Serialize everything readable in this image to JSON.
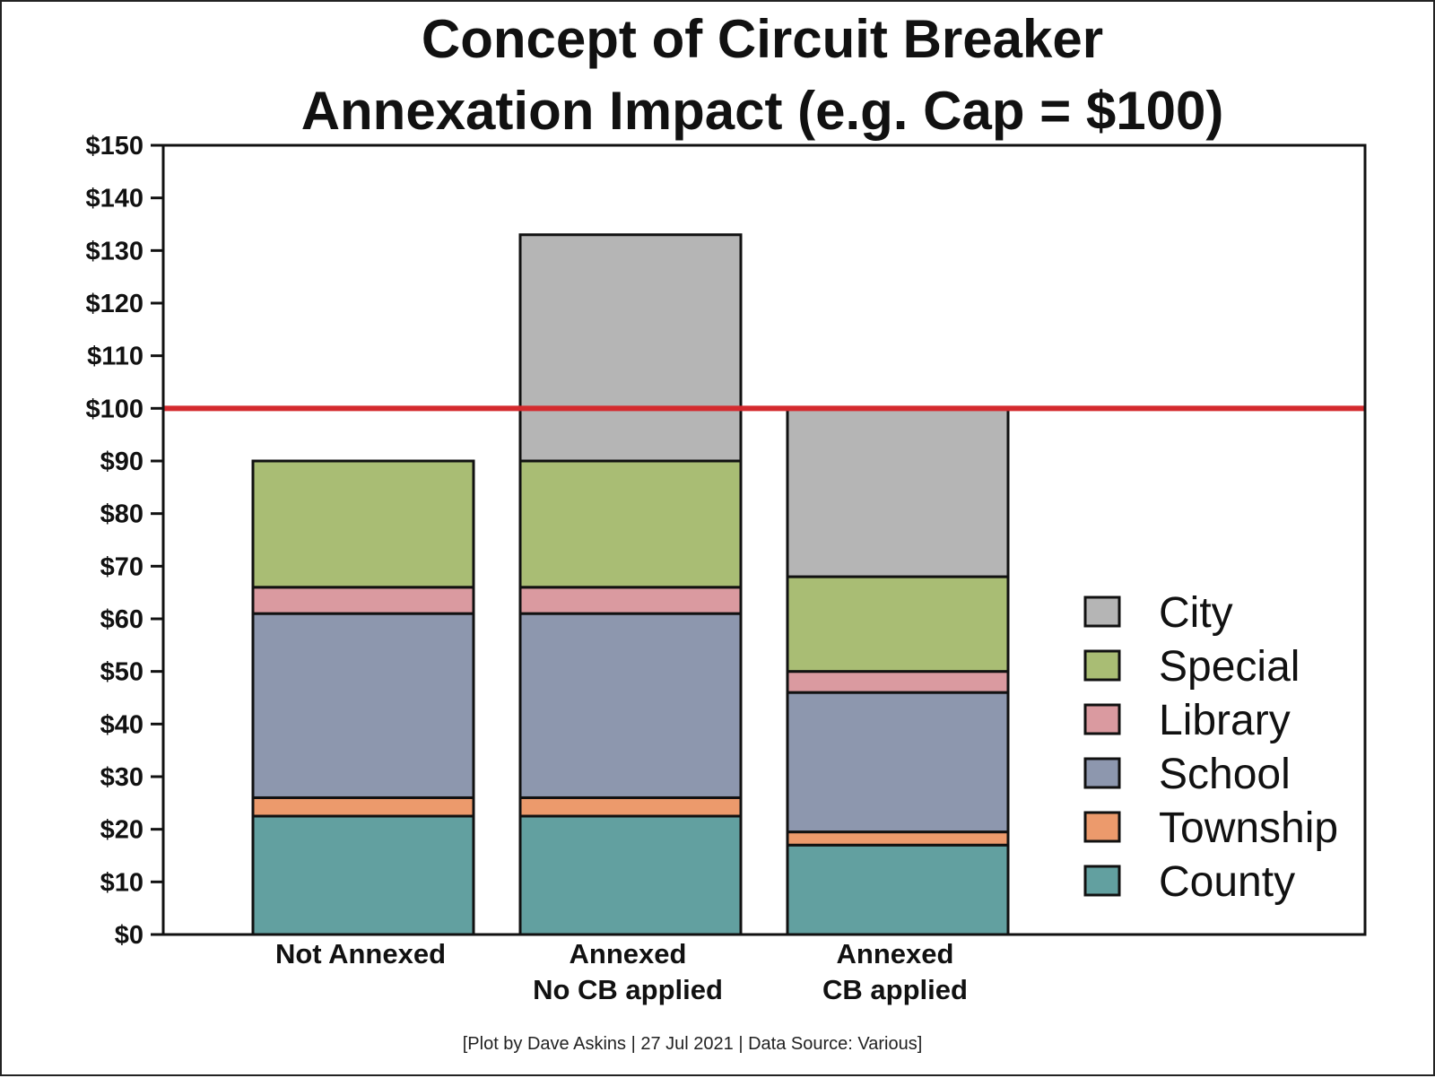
{
  "chart_data": {
    "type": "bar",
    "stacked": true,
    "title_lines": [
      "Concept of Circuit Breaker",
      "Annexation Impact (e.g. Cap = $100)"
    ],
    "categories": [
      [
        "Not Annexed"
      ],
      [
        "Annexed",
        "No CB applied"
      ],
      [
        "Annexed",
        "CB applied"
      ]
    ],
    "series": [
      {
        "name": "County",
        "color": "#62a0a0",
        "values": [
          22.5,
          22.5,
          17
        ]
      },
      {
        "name": "Township",
        "color": "#ec9a6c",
        "values": [
          3.5,
          3.5,
          2.5
        ]
      },
      {
        "name": "School",
        "color": "#8d97ae",
        "values": [
          35,
          35,
          26.5
        ]
      },
      {
        "name": "Library",
        "color": "#da9aa0",
        "values": [
          5,
          5,
          4
        ]
      },
      {
        "name": "Special",
        "color": "#a9bd74",
        "values": [
          24,
          24,
          18
        ]
      },
      {
        "name": "City",
        "color": "#b5b5b5",
        "values": [
          0,
          43,
          32
        ]
      }
    ],
    "legend_order": [
      "City",
      "Special",
      "Library",
      "School",
      "Township",
      "County"
    ],
    "legend_position": "right",
    "ylim": [
      0,
      150
    ],
    "yticks": [
      0,
      10,
      20,
      30,
      40,
      50,
      60,
      70,
      80,
      90,
      100,
      110,
      120,
      130,
      140,
      150
    ],
    "ytick_labels": [
      "$0",
      "$10",
      "$20",
      "$30",
      "$40",
      "$50",
      "$60",
      "$70",
      "$80",
      "$90",
      "$100",
      "$110",
      "$120",
      "$130",
      "$140",
      "$150"
    ],
    "cap_line": {
      "value": 100,
      "color": "#d42a2e"
    },
    "grid": false,
    "xlabel": "",
    "ylabel": ""
  },
  "caption": "[Plot by Dave Askins | 27 Jul 2021 | Data Source: Various]"
}
